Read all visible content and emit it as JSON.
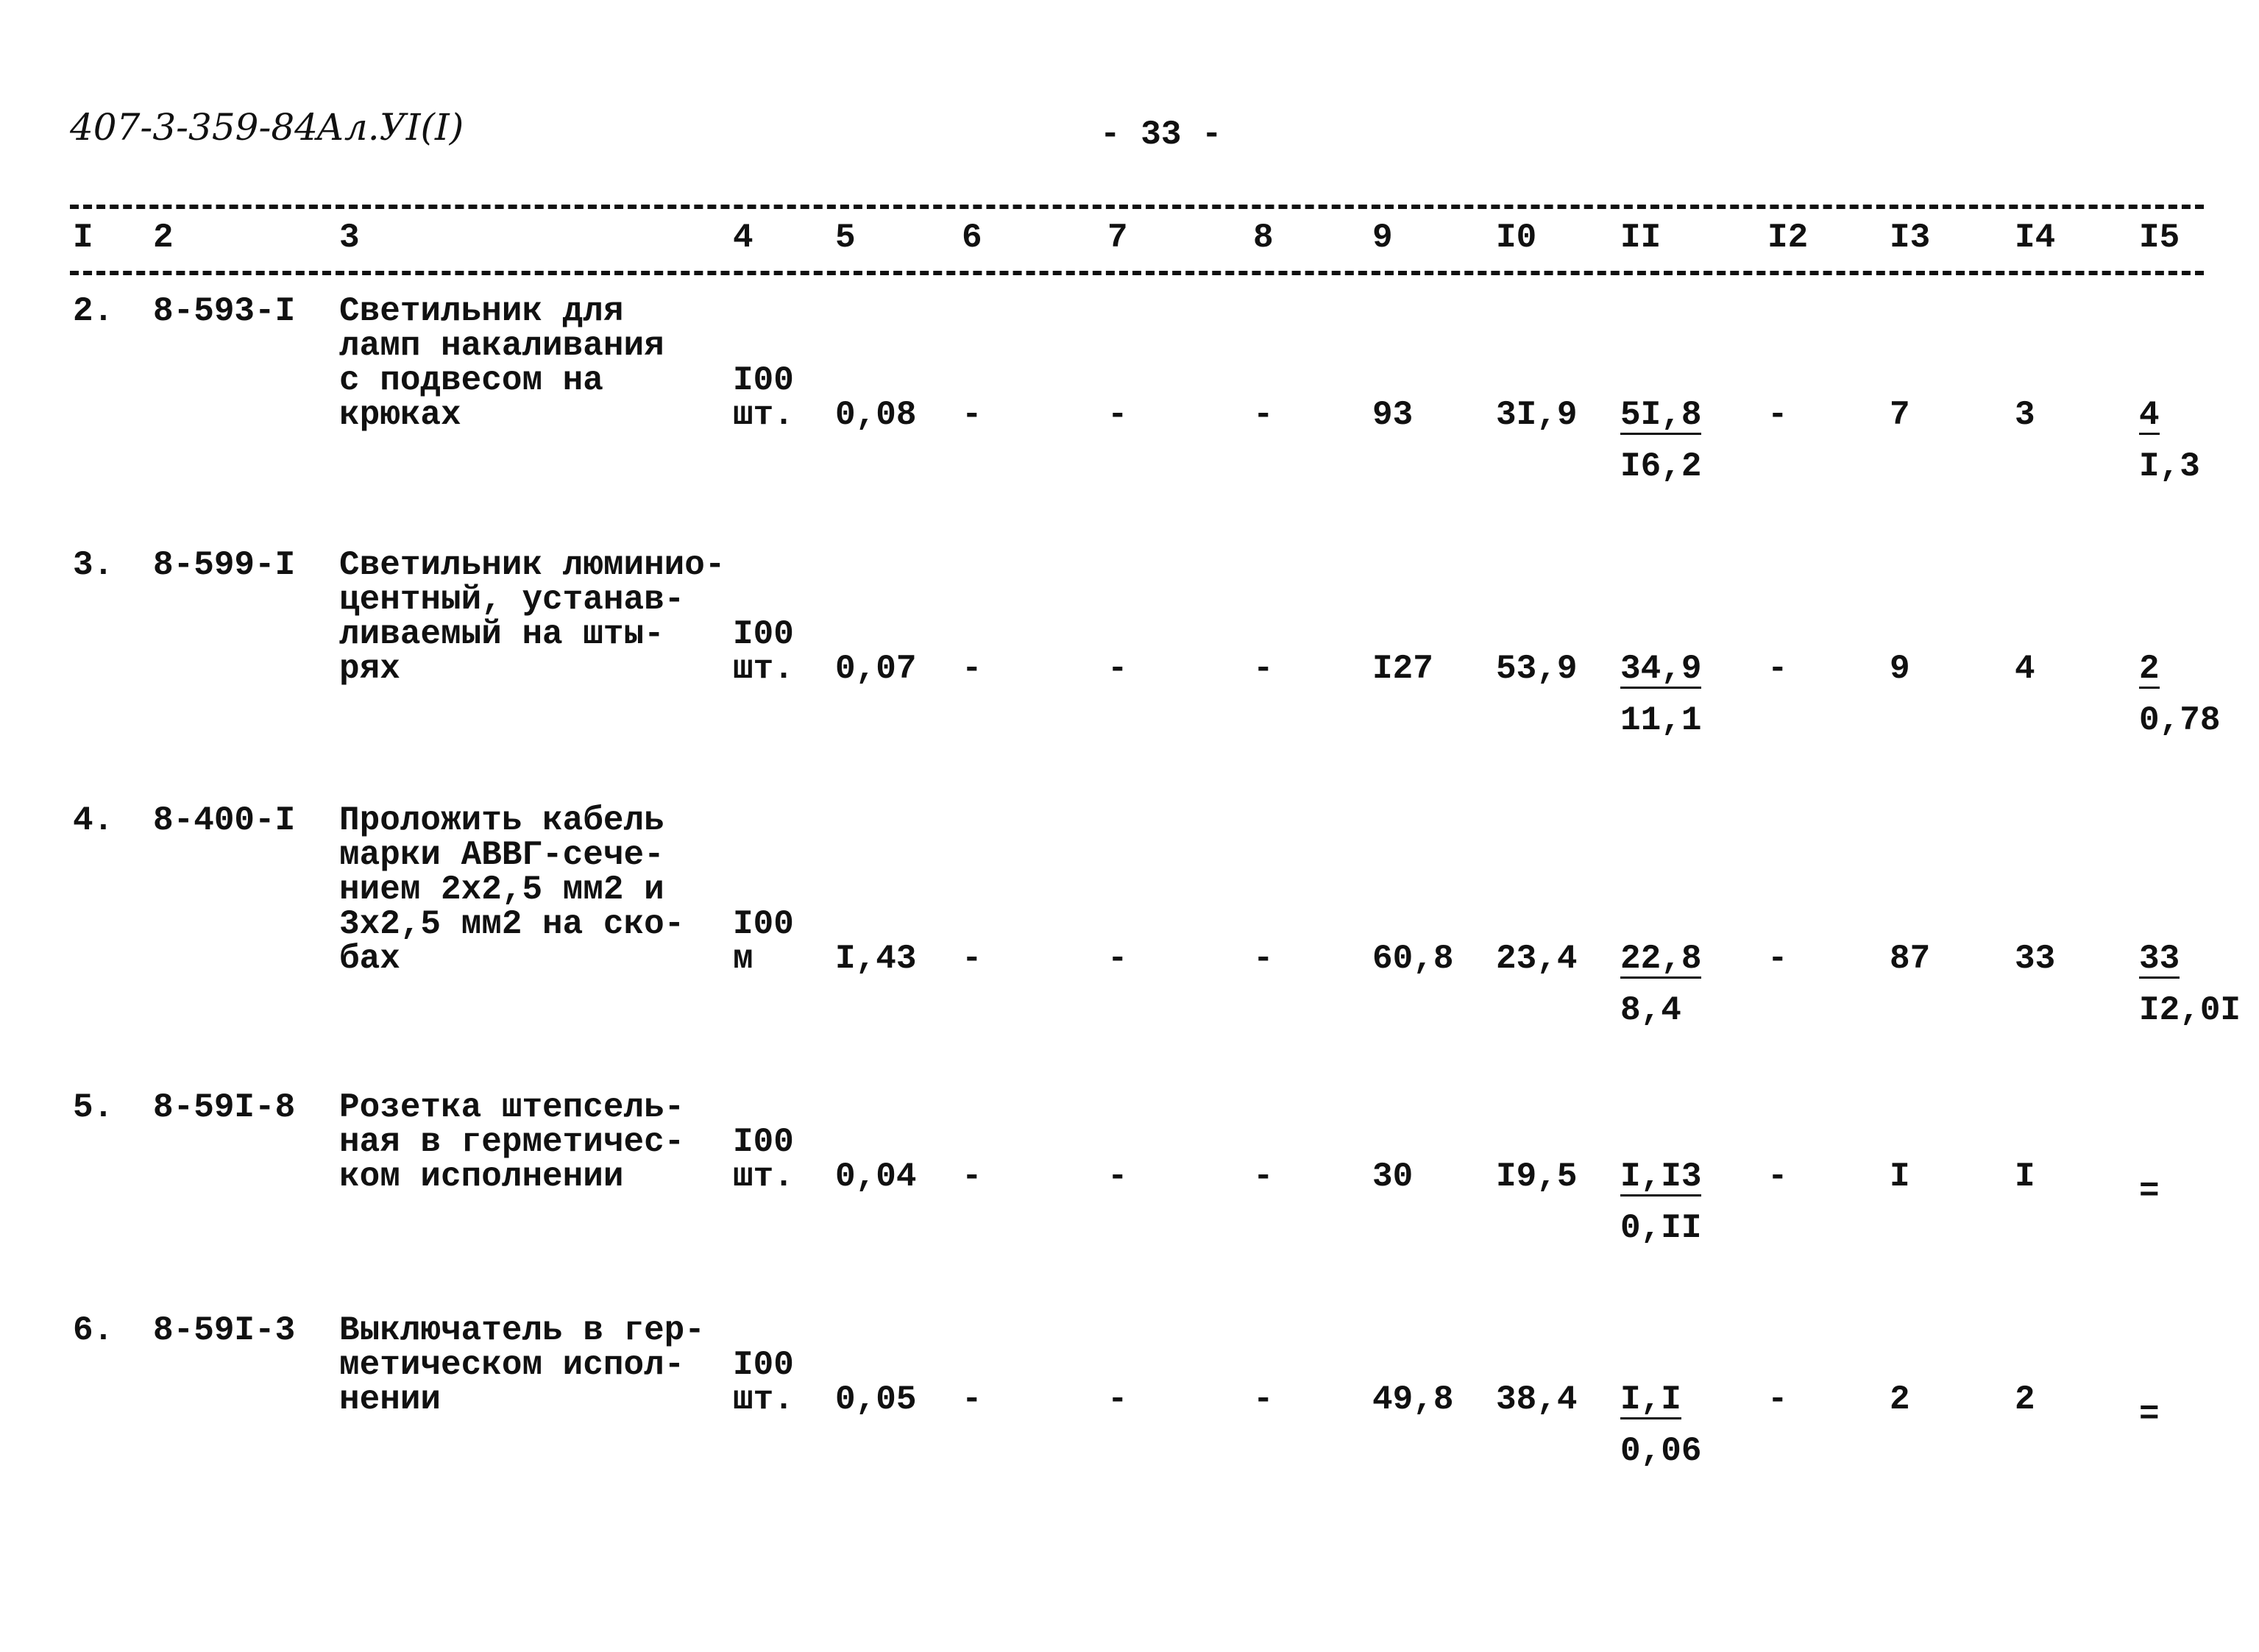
{
  "header": {
    "doc_code": "407-3-359-84",
    "sheet": "Ал.УI(I)",
    "page_number": "- 33 -"
  },
  "columns": [
    "I",
    "2",
    "3",
    "4",
    "5",
    "6",
    "7",
    "8",
    "9",
    "I0",
    "II",
    "I2",
    "I3",
    "I4",
    "I5"
  ],
  "rows": [
    {
      "no": "2.",
      "code": "8-593-I",
      "desc": [
        "Светильник для",
        "ламп накаливания",
        "с подвесом на",
        "крюках"
      ],
      "unit": [
        "I00",
        "шт."
      ],
      "c5": "0,08",
      "c6": "-",
      "c7": "-",
      "c8": "-",
      "c9": "93",
      "c10": "3I,9",
      "c11": [
        "5I,8",
        "I6,2"
      ],
      "c12": "-",
      "c13": "7",
      "c14": "3",
      "c15": [
        "4",
        "I,3"
      ]
    },
    {
      "no": "3.",
      "code": "8-599-I",
      "desc": [
        "Светильник люминио-",
        "центный, устанав-",
        "ливаемый на шты-",
        "рях"
      ],
      "unit": [
        "I00",
        "шт."
      ],
      "c5": "0,07",
      "c6": "-",
      "c7": "-",
      "c8": "-",
      "c9": "I27",
      "c10": "53,9",
      "c11": [
        "34,9",
        "11,1"
      ],
      "c12": "-",
      "c13": "9",
      "c14": "4",
      "c15": [
        "2",
        "0,78"
      ]
    },
    {
      "no": "4.",
      "code": "8-400-I",
      "desc": [
        "Проложить кабель",
        "марки АВВГ-сече-",
        "нием 2х2,5 мм2 и",
        "3х2,5 мм2 на ско-",
        "бах"
      ],
      "unit": [
        "I00",
        "м"
      ],
      "c5": "I,43",
      "c6": "-",
      "c7": "-",
      "c8": "-",
      "c9": "60,8",
      "c10": "23,4",
      "c11": [
        "22,8",
        "8,4"
      ],
      "c12": "-",
      "c13": "87",
      "c14": "33",
      "c15": [
        "33",
        "I2,0I"
      ]
    },
    {
      "no": "5.",
      "code": "8-59I-8",
      "desc": [
        "Розетка штепсель-",
        "ная в герметичес-",
        "ком исполнении"
      ],
      "unit": [
        "I00",
        "шт."
      ],
      "c5": "0,04",
      "c6": "-",
      "c7": "-",
      "c8": "-",
      "c9": "30",
      "c10": "I9,5",
      "c11": [
        "I,I3",
        "0,II"
      ],
      "c12": "-",
      "c13": "I",
      "c14": "I",
      "c15": [
        "=",
        ""
      ]
    },
    {
      "no": "6.",
      "code": "8-59I-3",
      "desc": [
        "Выключатель в гер-",
        "метическом испол-",
        "нении"
      ],
      "unit": [
        "I00",
        "шт."
      ],
      "c5": "0,05",
      "c6": "-",
      "c7": "-",
      "c8": "-",
      "c9": "49,8",
      "c10": "38,4",
      "c11": [
        "I,I",
        "0,06"
      ],
      "c12": "-",
      "c13": "2",
      "c14": "2",
      "c15": [
        "=",
        ""
      ]
    }
  ]
}
